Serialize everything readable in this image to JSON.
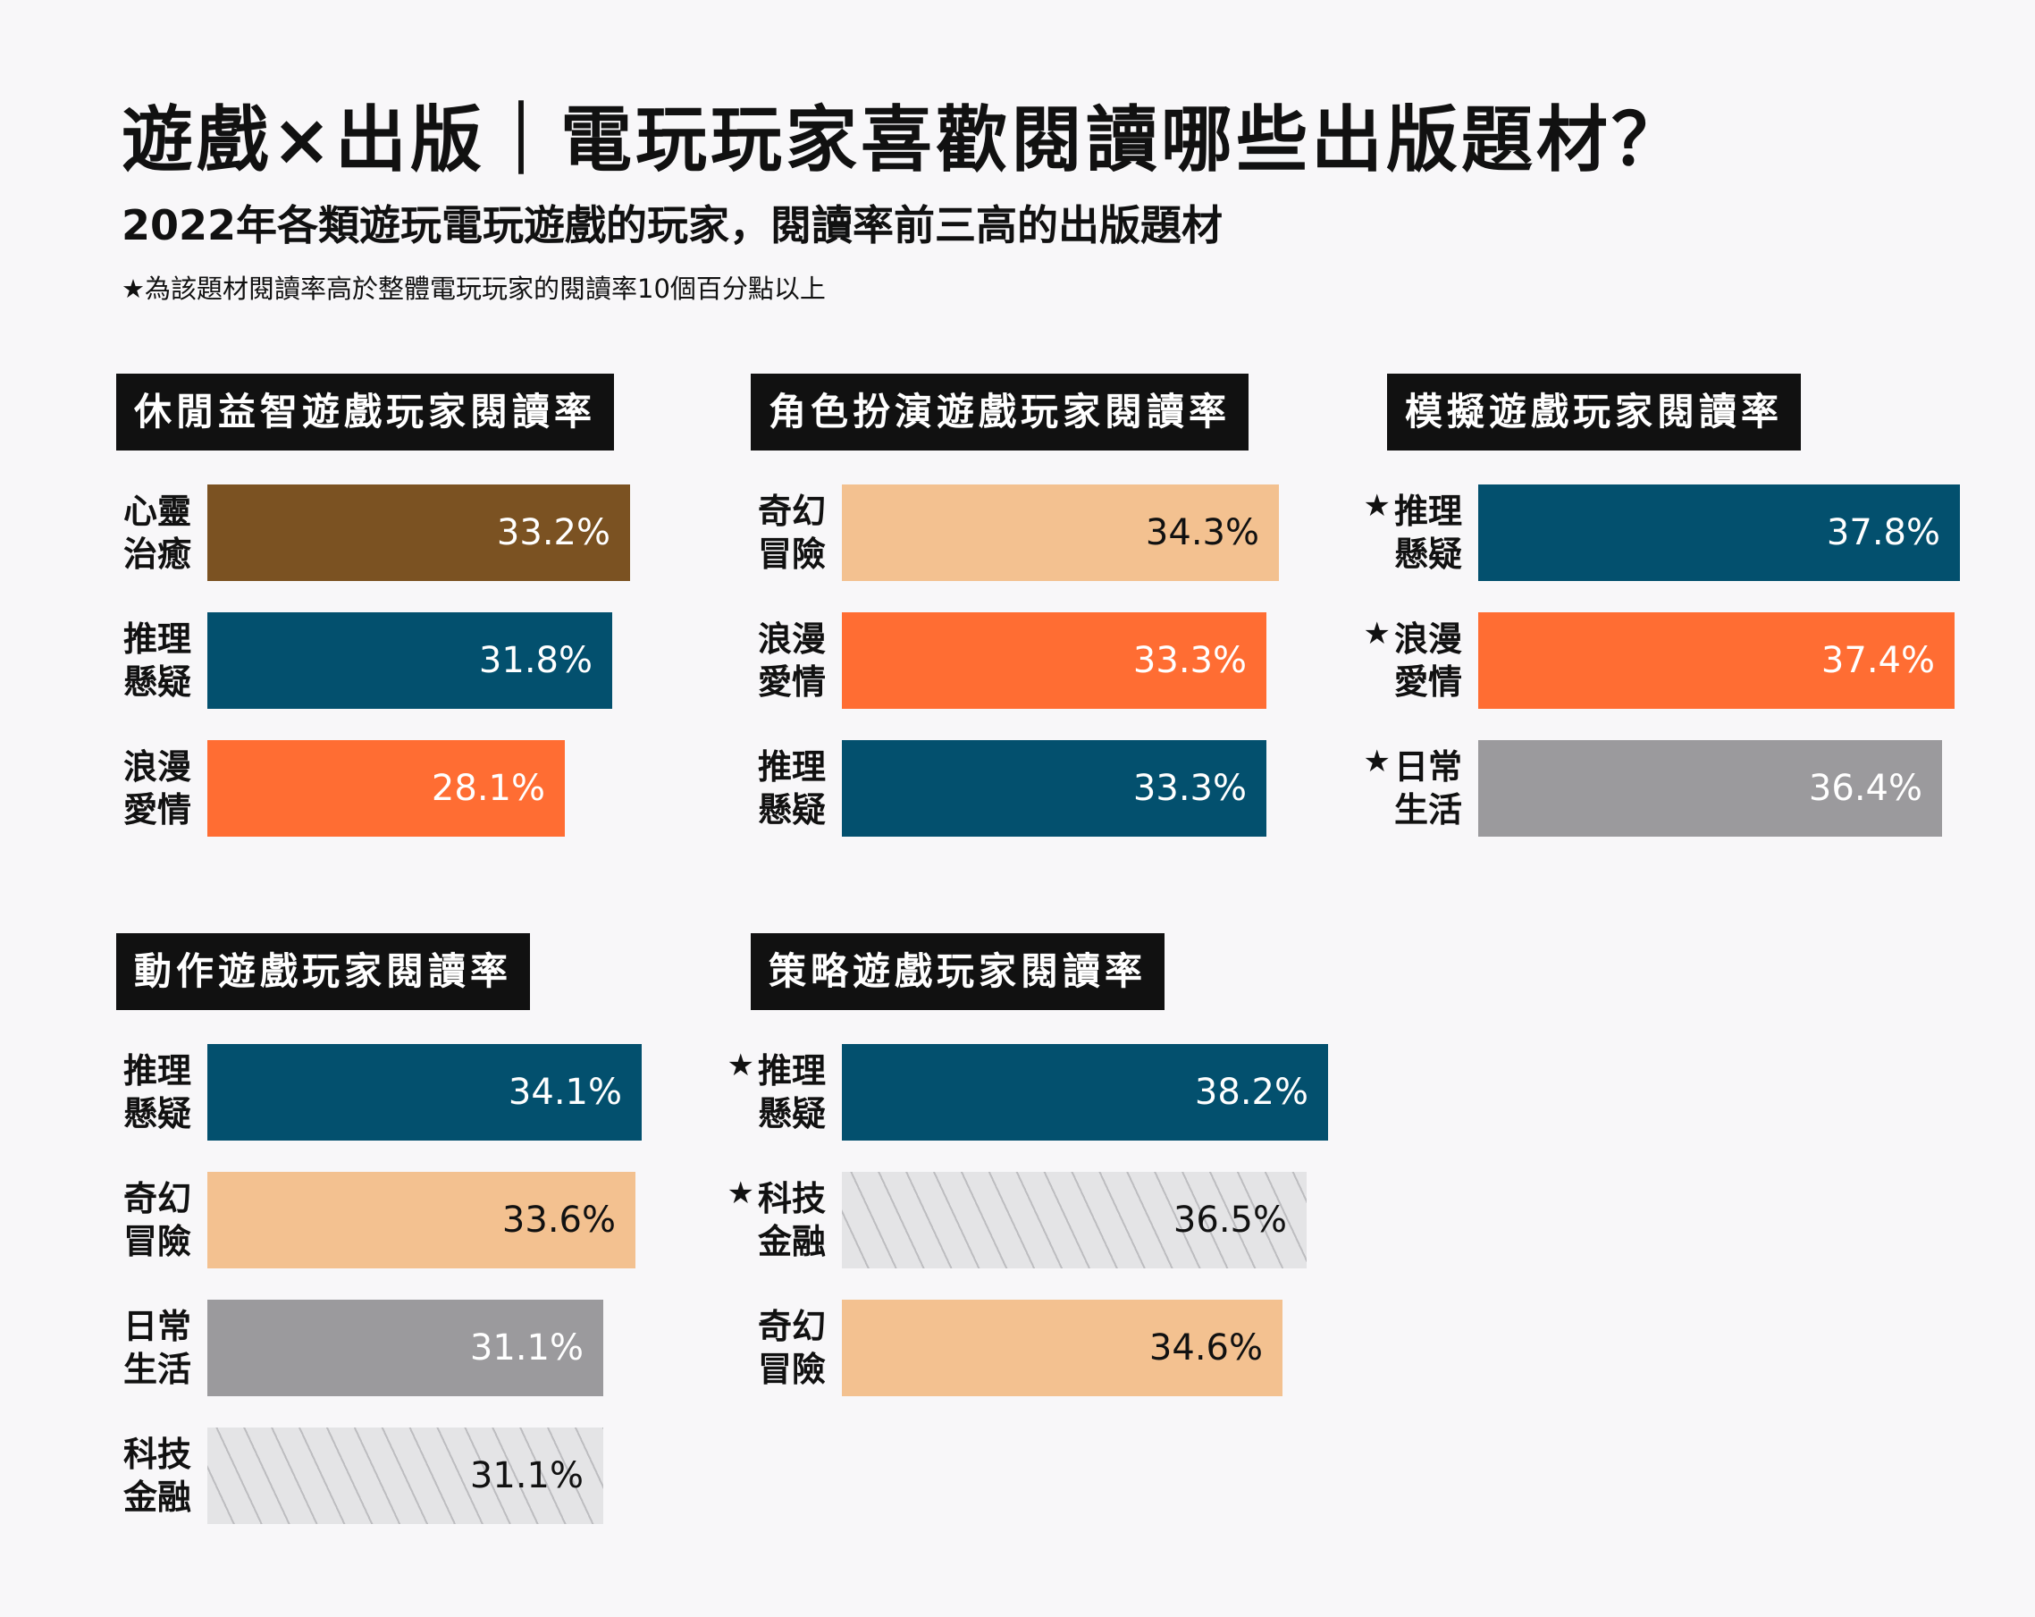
{
  "title": "遊戲×出版｜電玩玩家喜歡閱讀哪些出版題材？",
  "subtitle": "2022年各類遊玩電玩遊戲的玩家，閱讀率前三高的出版題材",
  "note": "★為該題材閱讀率高於整體電玩玩家的閱讀率10個百分點以上",
  "colors": {
    "brown": "#7b5222",
    "teal": "#03506e",
    "orange": "#ff6d33",
    "peach": "#f3c190",
    "gray": "#9b9a9d",
    "hatch": "#e4e4e6"
  },
  "chart_data": [
    {
      "type": "bar",
      "title": "休閒益智遊戲玩家閱讀率",
      "categories": [
        "心靈治癒",
        "推理懸疑",
        "浪漫愛情"
      ],
      "values": [
        33.2,
        31.8,
        28.1
      ],
      "labels": [
        "33.2%",
        "31.8%",
        "28.1%"
      ],
      "stars": [
        false,
        false,
        false
      ],
      "colors": [
        "brown",
        "teal",
        "orange"
      ]
    },
    {
      "type": "bar",
      "title": "角色扮演遊戲玩家閱讀率",
      "categories": [
        "奇幻冒險",
        "浪漫愛情",
        "推理懸疑"
      ],
      "values": [
        34.3,
        33.3,
        33.3
      ],
      "labels": [
        "34.3%",
        "33.3%",
        "33.3%"
      ],
      "stars": [
        false,
        false,
        false
      ],
      "colors": [
        "peach",
        "orange",
        "teal"
      ]
    },
    {
      "type": "bar",
      "title": "模擬遊戲玩家閱讀率",
      "categories": [
        "推理懸疑",
        "浪漫愛情",
        "日常生活"
      ],
      "values": [
        37.8,
        37.4,
        36.4
      ],
      "labels": [
        "37.8%",
        "37.4%",
        "36.4%"
      ],
      "stars": [
        true,
        true,
        true
      ],
      "colors": [
        "teal",
        "orange",
        "gray"
      ]
    },
    {
      "type": "bar",
      "title": "動作遊戲玩家閱讀率",
      "categories": [
        "推理懸疑",
        "奇幻冒險",
        "日常生活",
        "科技金融"
      ],
      "values": [
        34.1,
        33.6,
        31.1,
        31.1
      ],
      "labels": [
        "34.1%",
        "33.6%",
        "31.1%",
        "31.1%"
      ],
      "stars": [
        false,
        false,
        false,
        false
      ],
      "colors": [
        "teal",
        "peach",
        "gray",
        "hatch"
      ]
    },
    {
      "type": "bar",
      "title": "策略遊戲玩家閱讀率",
      "categories": [
        "推理懸疑",
        "科技金融",
        "奇幻冒險"
      ],
      "values": [
        38.2,
        36.5,
        34.6
      ],
      "labels": [
        "38.2%",
        "36.5%",
        "34.6%"
      ],
      "stars": [
        true,
        true,
        false
      ],
      "colors": [
        "teal",
        "hatch",
        "peach"
      ]
    }
  ]
}
